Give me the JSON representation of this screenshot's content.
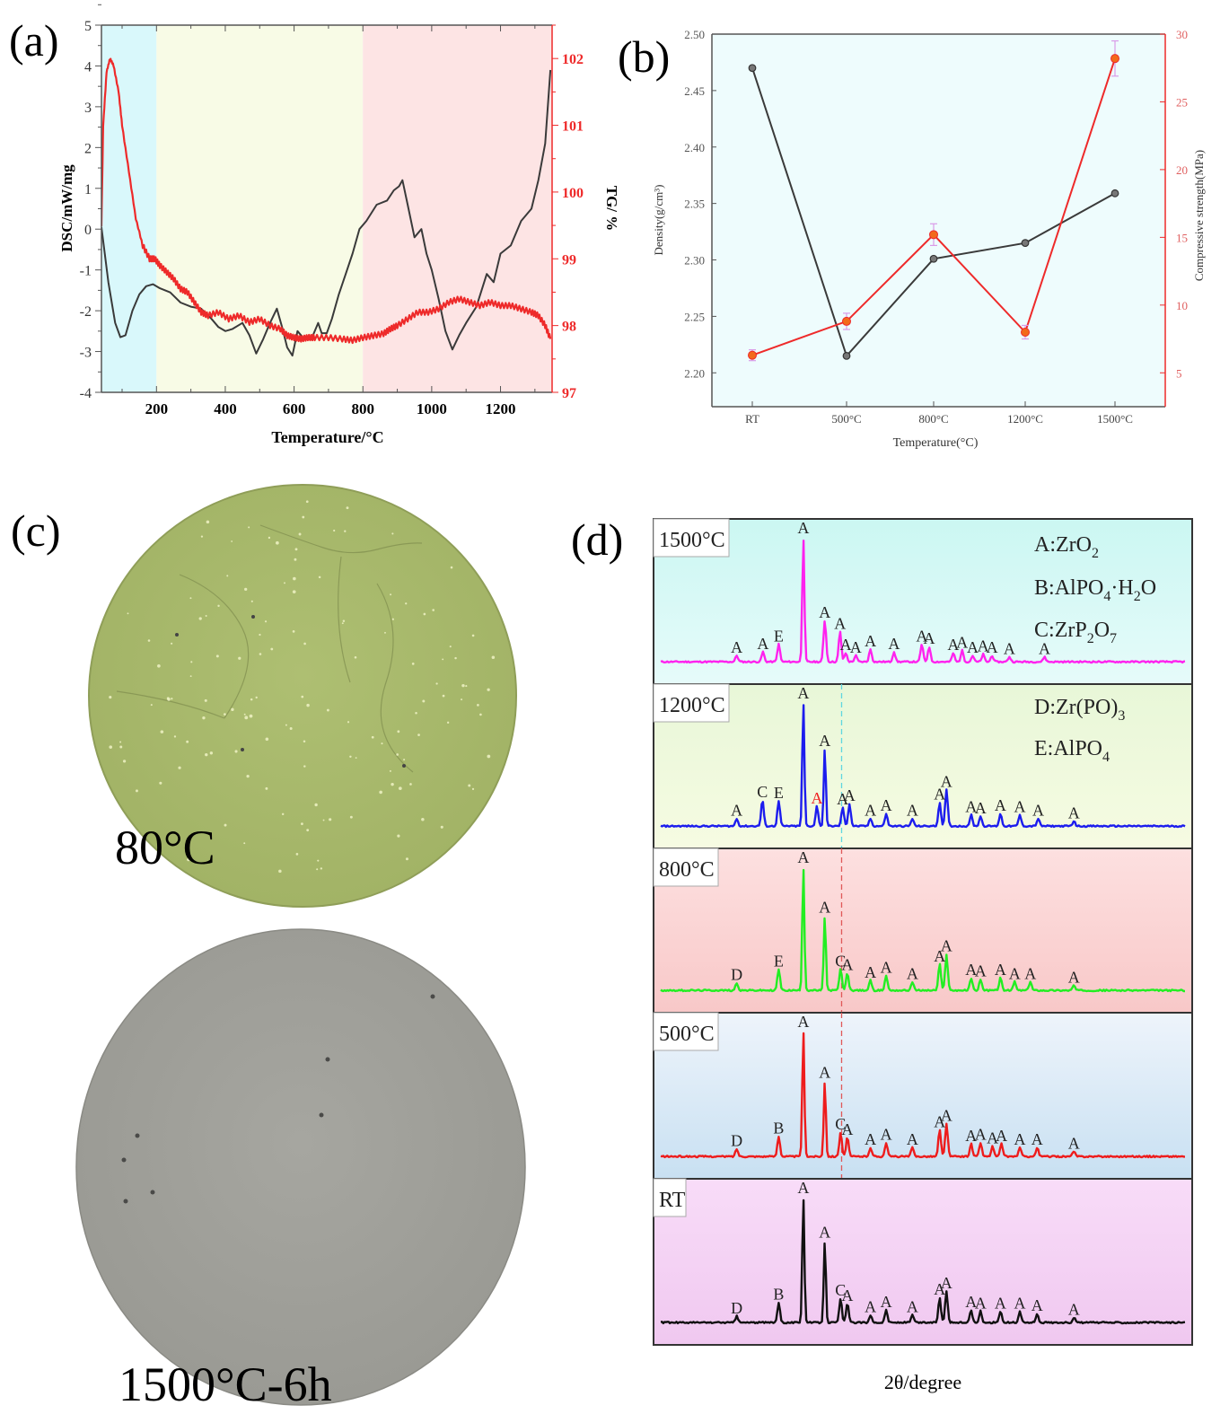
{
  "panel_labels": {
    "a": "(a)",
    "b": "(b)",
    "c": "(c)",
    "d": "(d)"
  },
  "colors": {
    "dsc": "#3a3a3a",
    "tg": "#ee2a2a",
    "region_low": "#d9f8fb",
    "region_mid": "#f8fbe6",
    "region_high": "#fde4e4",
    "density": "#3a3a3a",
    "strength": "#ee2a2a",
    "strength_marker": "#f26a1b",
    "errorbar": "#d99be8",
    "b_background": "#eefcfd",
    "photo_green": "#a7b86c",
    "photo_grey": "#9e9e98",
    "photo_label": "#ee1c1c"
  },
  "chart_data": [
    {
      "id": "a",
      "type": "line",
      "title": "",
      "xlabel": "Temperature/°C",
      "ylabel": "DSC/mW/mg",
      "y2label": "TG/ %",
      "xlim": [
        40,
        1350
      ],
      "ylim": [
        -4,
        5
      ],
      "y2lim": [
        97,
        102.5
      ],
      "xticks": [
        200,
        400,
        600,
        800,
        1000,
        1200
      ],
      "yticks": [
        -4,
        -3,
        -2,
        -1,
        0,
        1,
        2,
        3,
        4,
        5
      ],
      "y2ticks": [
        97,
        98,
        99,
        100,
        101,
        102
      ],
      "regions": [
        {
          "from": 40,
          "to": 200,
          "color_key": "region_low"
        },
        {
          "from": 200,
          "to": 800,
          "color_key": "region_mid"
        },
        {
          "from": 800,
          "to": 1350,
          "color_key": "region_high"
        }
      ],
      "series": [
        {
          "name": "DSC",
          "axis": "left",
          "color_key": "dsc",
          "x": [
            40,
            60,
            80,
            95,
            110,
            130,
            150,
            170,
            190,
            210,
            240,
            270,
            300,
            330,
            360,
            380,
            400,
            420,
            450,
            470,
            490,
            510,
            530,
            550,
            565,
            580,
            595,
            610,
            630,
            650,
            670,
            680,
            695,
            710,
            730,
            750,
            770,
            790,
            810,
            840,
            870,
            890,
            905,
            915,
            930,
            950,
            970,
            985,
            1000,
            1020,
            1040,
            1060,
            1080,
            1100,
            1130,
            1160,
            1180,
            1200,
            1230,
            1260,
            1290,
            1310,
            1330,
            1345
          ],
          "y": [
            0.05,
            -1.3,
            -2.3,
            -2.65,
            -2.6,
            -2.0,
            -1.6,
            -1.4,
            -1.35,
            -1.45,
            -1.55,
            -1.8,
            -1.9,
            -1.95,
            -2.2,
            -2.4,
            -2.5,
            -2.45,
            -2.3,
            -2.6,
            -3.05,
            -2.7,
            -2.3,
            -1.95,
            -2.4,
            -2.9,
            -3.1,
            -2.5,
            -2.7,
            -2.7,
            -2.3,
            -2.55,
            -2.55,
            -2.2,
            -1.6,
            -1.1,
            -0.6,
            0.0,
            0.2,
            0.6,
            0.7,
            0.95,
            1.05,
            1.2,
            0.6,
            -0.2,
            0.0,
            -0.6,
            -1.0,
            -1.7,
            -2.5,
            -2.95,
            -2.6,
            -2.3,
            -1.9,
            -1.1,
            -1.3,
            -0.6,
            -0.4,
            0.2,
            0.5,
            1.2,
            2.1,
            3.9
          ]
        },
        {
          "name": "TG",
          "axis": "right",
          "color_key": "tg",
          "x": [
            40,
            45,
            55,
            65,
            75,
            90,
            100,
            120,
            140,
            160,
            180,
            195,
            210,
            230,
            250,
            270,
            290,
            310,
            330,
            350,
            380,
            410,
            440,
            470,
            500,
            530,
            560,
            580,
            600,
            620,
            640,
            660,
            700,
            740,
            770,
            800,
            830,
            860,
            880,
            900,
            930,
            960,
            990,
            1020,
            1050,
            1080,
            1110,
            1140,
            1170,
            1200,
            1230,
            1260,
            1290,
            1310,
            1330,
            1345
          ],
          "y": [
            99.5,
            101.0,
            101.8,
            102.0,
            101.9,
            101.5,
            101.0,
            100.3,
            99.6,
            99.2,
            99.0,
            99.0,
            98.9,
            98.8,
            98.7,
            98.55,
            98.5,
            98.35,
            98.2,
            98.15,
            98.2,
            98.1,
            98.15,
            98.05,
            98.1,
            98.0,
            97.95,
            97.85,
            97.82,
            97.8,
            97.82,
            97.82,
            97.82,
            97.8,
            97.78,
            97.82,
            97.85,
            97.88,
            97.95,
            98.0,
            98.1,
            98.2,
            98.2,
            98.25,
            98.35,
            98.4,
            98.35,
            98.3,
            98.35,
            98.3,
            98.3,
            98.25,
            98.2,
            98.15,
            98.0,
            97.8
          ]
        }
      ]
    },
    {
      "id": "b",
      "type": "line",
      "title": "",
      "xlabel": "Temperature(°C)",
      "ylabel": "Density(g/cm³)",
      "y2label": "Compressive strength(MPa)",
      "categories": [
        "RT",
        "500°C",
        "800°C",
        "1200°C",
        "1500°C"
      ],
      "ylim": [
        2.17,
        2.5
      ],
      "y2lim": [
        2.5,
        30
      ],
      "yticks": [
        2.2,
        2.25,
        2.3,
        2.35,
        2.4,
        2.45,
        2.5
      ],
      "yticklabels": [
        "2.20",
        "2.25",
        "2.30",
        "2.35",
        "2.40",
        "2.45",
        "2.50"
      ],
      "y2ticks": [
        5,
        10,
        15,
        20,
        25,
        30
      ],
      "series": [
        {
          "name": "Density",
          "axis": "left",
          "color_key": "density",
          "values": [
            2.47,
            2.215,
            2.301,
            2.315,
            2.359
          ]
        },
        {
          "name": "Compressive strength",
          "axis": "right",
          "color_key": "strength",
          "values": [
            6.3,
            8.8,
            15.2,
            8.0,
            28.2
          ],
          "error": [
            0.4,
            0.6,
            0.8,
            0.5,
            1.3
          ]
        }
      ]
    },
    {
      "id": "d",
      "type": "line",
      "title": "",
      "xlabel": "2θ/degree",
      "ylabel": "",
      "x_range": [
        0,
        100
      ],
      "legend": [
        {
          "prefix": "A:",
          "formula": [
            [
              "ZrO",
              ""
            ],
            [
              "2",
              "sub"
            ]
          ]
        },
        {
          "prefix": "B:",
          "formula": [
            [
              "AlPO",
              ""
            ],
            [
              "4",
              "sub"
            ],
            [
              "·H",
              ""
            ],
            [
              "2",
              "sub"
            ],
            [
              "O",
              ""
            ]
          ]
        },
        {
          "prefix": "C:",
          "formula": [
            [
              "ZrP",
              ""
            ],
            [
              "2",
              "sub"
            ],
            [
              "O",
              ""
            ],
            [
              "7",
              "sub"
            ]
          ]
        },
        {
          "prefix": "D:",
          "formula": [
            [
              "Zr(PO)",
              ""
            ],
            [
              "3",
              "sub"
            ]
          ]
        },
        {
          "prefix": "E:",
          "formula": [
            [
              "AlPO",
              ""
            ],
            [
              "4",
              "sub"
            ]
          ]
        }
      ],
      "reference_lines": [
        {
          "x": 34.5,
          "color": "#5fd6e0",
          "panels": [
            "1200°C"
          ]
        },
        {
          "x": 34.5,
          "color": "#e05858",
          "panels": [
            "800°C",
            "500°C"
          ]
        }
      ],
      "series": [
        {
          "name": "1500°C",
          "color": "#ff22ee",
          "bg_top": "#cbf7f2",
          "bg_bottom": "#e6fbfa",
          "peaks": [
            [
              14.5,
              0.05,
              "A"
            ],
            [
              19.5,
              0.08,
              "A"
            ],
            [
              22.5,
              0.14,
              "E"
            ],
            [
              27.2,
              1.0,
              "A"
            ],
            [
              31.3,
              0.33,
              "A"
            ],
            [
              34.2,
              0.24,
              "A"
            ],
            [
              35.3,
              0.07,
              "A"
            ],
            [
              37.2,
              0.05,
              "A"
            ],
            [
              40,
              0.1,
              "A"
            ],
            [
              44.5,
              0.08,
              "A"
            ],
            [
              49.8,
              0.14,
              "A"
            ],
            [
              51.2,
              0.12,
              "A"
            ],
            [
              55.8,
              0.07,
              "A"
            ],
            [
              57.5,
              0.09,
              "A"
            ],
            [
              59.5,
              0.05,
              "A"
            ],
            [
              61.5,
              0.06,
              "A"
            ],
            [
              63.2,
              0.05,
              "A"
            ],
            [
              66.5,
              0.04,
              "A"
            ],
            [
              73.2,
              0.04,
              "A"
            ]
          ],
          "label_mode": "per_peak"
        },
        {
          "name": "1200°C",
          "color": "#1c1cee",
          "bg_top": "#e8f7d8",
          "bg_bottom": "#f6fbe2",
          "peaks": [
            [
              14.5,
              0.06,
              "A"
            ],
            [
              19.4,
              0.21,
              "C"
            ],
            [
              22.5,
              0.2,
              "E"
            ],
            [
              27.2,
              1.0,
              "A"
            ],
            [
              29.8,
              0.16,
              "A*"
            ],
            [
              31.3,
              0.62,
              "A"
            ],
            [
              34.7,
              0.15,
              "A"
            ],
            [
              36.0,
              0.18,
              "A"
            ],
            [
              40,
              0.06,
              "A"
            ],
            [
              43.0,
              0.1,
              "A"
            ],
            [
              48.0,
              0.06,
              "A"
            ],
            [
              53.2,
              0.19,
              "A"
            ],
            [
              54.5,
              0.29,
              "A"
            ],
            [
              59.2,
              0.09,
              "A"
            ],
            [
              61.0,
              0.08,
              "A"
            ],
            [
              64.8,
              0.1,
              "A"
            ],
            [
              68.5,
              0.09,
              "A"
            ],
            [
              72.0,
              0.06,
              "A"
            ],
            [
              78.8,
              0.04,
              "A"
            ]
          ]
        },
        {
          "name": "800°C",
          "color": "#22ee22",
          "bg_top": "#fde0e0",
          "bg_bottom": "#f8c8c8",
          "peaks": [
            [
              14.5,
              0.06,
              "D"
            ],
            [
              22.5,
              0.17,
              "E"
            ],
            [
              27.2,
              1.0,
              "A"
            ],
            [
              31.3,
              0.6,
              "A"
            ],
            [
              34.3,
              0.17,
              "C"
            ],
            [
              35.6,
              0.14,
              "A"
            ],
            [
              40,
              0.08,
              "A"
            ],
            [
              43.0,
              0.12,
              "A"
            ],
            [
              48.0,
              0.07,
              "A"
            ],
            [
              53.2,
              0.21,
              "A"
            ],
            [
              54.5,
              0.29,
              "A"
            ],
            [
              59.2,
              0.1,
              "A"
            ],
            [
              61.0,
              0.09,
              "A"
            ],
            [
              64.8,
              0.1,
              "A"
            ],
            [
              67.5,
              0.07,
              "A"
            ],
            [
              70.5,
              0.07,
              "A"
            ],
            [
              78.8,
              0.04,
              "A"
            ]
          ]
        },
        {
          "name": "500°C",
          "color": "#ee1c1c",
          "bg_top": "#eef4fb",
          "bg_bottom": "#c8e0f2",
          "peaks": [
            [
              14.5,
              0.06,
              "D"
            ],
            [
              22.5,
              0.16,
              "B"
            ],
            [
              27.2,
              1.0,
              "A"
            ],
            [
              31.3,
              0.6,
              "A"
            ],
            [
              34.3,
              0.19,
              "C"
            ],
            [
              35.6,
              0.15,
              "A"
            ],
            [
              40,
              0.07,
              "A"
            ],
            [
              43.0,
              0.11,
              "A"
            ],
            [
              48.0,
              0.07,
              "A"
            ],
            [
              53.2,
              0.21,
              "A"
            ],
            [
              54.5,
              0.26,
              "A"
            ],
            [
              59.2,
              0.1,
              "A"
            ],
            [
              61.0,
              0.11,
              "A"
            ],
            [
              63.3,
              0.08,
              "A"
            ],
            [
              65.0,
              0.1,
              "A"
            ],
            [
              68.5,
              0.07,
              "A"
            ],
            [
              71.8,
              0.07,
              "A"
            ],
            [
              78.8,
              0.04,
              "A"
            ]
          ]
        },
        {
          "name": "RT",
          "color": "#111111",
          "bg_top": "#f8dcf8",
          "bg_bottom": "#f0c8f0",
          "peaks": [
            [
              14.5,
              0.05,
              "D"
            ],
            [
              22.5,
              0.16,
              "B"
            ],
            [
              27.2,
              1.0,
              "A"
            ],
            [
              31.3,
              0.65,
              "A"
            ],
            [
              34.3,
              0.19,
              "C"
            ],
            [
              35.6,
              0.15,
              "A"
            ],
            [
              40,
              0.06,
              "A"
            ],
            [
              43.0,
              0.1,
              "A"
            ],
            [
              48.0,
              0.06,
              "A"
            ],
            [
              53.2,
              0.2,
              "A"
            ],
            [
              54.5,
              0.25,
              "A"
            ],
            [
              59.2,
              0.1,
              "A"
            ],
            [
              61.0,
              0.09,
              "A"
            ],
            [
              64.8,
              0.09,
              "A"
            ],
            [
              68.5,
              0.09,
              "A"
            ],
            [
              71.8,
              0.07,
              "A"
            ],
            [
              78.8,
              0.04,
              "A"
            ]
          ]
        }
      ]
    }
  ],
  "photos": [
    {
      "id": "sample-80c",
      "label": "80°C",
      "color_key": "photo_green"
    },
    {
      "id": "sample-1500c",
      "label": "1500°C-6h",
      "color_key": "photo_grey"
    }
  ]
}
